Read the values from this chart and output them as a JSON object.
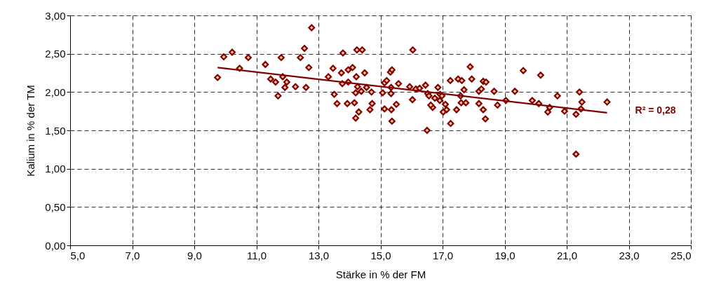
{
  "chart_data": {
    "type": "scatter",
    "xlabel": "Stärke in % der FM",
    "ylabel": "Kalium in % der TM",
    "xlim": [
      5,
      25
    ],
    "ylim": [
      0,
      3
    ],
    "xticks": [
      {
        "value": 5,
        "label": "5,0"
      },
      {
        "value": 7,
        "label": "7,0"
      },
      {
        "value": 9,
        "label": "9,0"
      },
      {
        "value": 11,
        "label": "11,0"
      },
      {
        "value": 13,
        "label": "13,0"
      },
      {
        "value": 15,
        "label": "15,0"
      },
      {
        "value": 17,
        "label": "17,0"
      },
      {
        "value": 19,
        "label": "19,0"
      },
      {
        "value": 21,
        "label": "21,0"
      },
      {
        "value": 23,
        "label": "23,0"
      },
      {
        "value": 25,
        "label": "25,0"
      }
    ],
    "yticks": [
      {
        "value": 0,
        "label": "0,00"
      },
      {
        "value": 0.5,
        "label": "0,50"
      },
      {
        "value": 1,
        "label": "1,00"
      },
      {
        "value": 1.5,
        "label": "1,50"
      },
      {
        "value": 2,
        "label": "2,00"
      },
      {
        "value": 2.5,
        "label": "2,50"
      },
      {
        "value": 3,
        "label": "3,00"
      }
    ],
    "grid": true,
    "marker": "diamond",
    "annotations": [
      "R² = 0,28"
    ],
    "series": [
      {
        "color": "#800000",
        "x": [
          9.75,
          9.95,
          10.22,
          10.46,
          10.74,
          11.29,
          11.46,
          11.62,
          11.8,
          11.85,
          11.98,
          11.92,
          11.7,
          12.26,
          12.42,
          12.55,
          12.69,
          12.6,
          12.78,
          13.32,
          13.47,
          13.51,
          13.6,
          13.79,
          13.74,
          13.77,
          13.93,
          13.96,
          14.1,
          14.16,
          14.2,
          14.22,
          14.24,
          14.41,
          14.3,
          14.2,
          14.26,
          14.38,
          13.96,
          14.49,
          14.55,
          14.71,
          14.73,
          14.66,
          15.07,
          15.13,
          15.2,
          15.32,
          15.37,
          15.34,
          15.34,
          15.13,
          15.35,
          15.51,
          15.37,
          15.58,
          15.94,
          16.04,
          16.03,
          16.14,
          16.26,
          16.45,
          16.52,
          16.56,
          16.5,
          16.75,
          16.85,
          16.92,
          16.98,
          16.68,
          16.62,
          16.91,
          17.09,
          17.13,
          17.02,
          17.26,
          17.45,
          17.25,
          17.5,
          17.62,
          17.69,
          17.58,
          17.6,
          17.75,
          17.89,
          17.94,
          18.17,
          18.25,
          18.31,
          18.4,
          18.17,
          18.31,
          18.38,
          18.66,
          18.77,
          19.04,
          19.33,
          19.6,
          20.16,
          19.89,
          20.1,
          20.45,
          20.39,
          20.7,
          20.93,
          21.3,
          21.41,
          21.49,
          21.46,
          21.3,
          22.3
        ],
        "values": [
          2.19,
          2.46,
          2.52,
          2.31,
          2.45,
          2.36,
          2.17,
          2.13,
          2.45,
          2.2,
          2.13,
          2.06,
          1.95,
          2.07,
          2.45,
          2.57,
          2.32,
          2.06,
          2.84,
          2.2,
          2.31,
          1.97,
          1.85,
          2.51,
          2.25,
          2.11,
          1.85,
          2.29,
          2.32,
          1.86,
          1.99,
          2.2,
          2.55,
          2.55,
          1.74,
          1.66,
          2.07,
          2.01,
          2.13,
          2.25,
          2.06,
          2.0,
          1.85,
          1.77,
          1.99,
          2.12,
          2.15,
          2.26,
          2.29,
          1.98,
          2.06,
          1.78,
          1.77,
          1.84,
          1.62,
          2.11,
          2.07,
          2.55,
          1.9,
          2.04,
          2.05,
          2.09,
          1.98,
          1.95,
          1.5,
          1.92,
          2.06,
          1.97,
          1.95,
          1.8,
          1.83,
          1.89,
          1.84,
          1.77,
          1.74,
          1.59,
          1.77,
          2.15,
          2.17,
          2.15,
          2.03,
          1.95,
          1.86,
          1.86,
          2.33,
          2.17,
          2.01,
          2.04,
          2.14,
          2.13,
          1.85,
          1.77,
          1.65,
          2.01,
          1.83,
          1.89,
          2.01,
          2.28,
          2.22,
          1.89,
          1.85,
          1.8,
          1.74,
          1.95,
          1.75,
          1.71,
          2.0,
          1.87,
          1.78,
          1.19,
          1.87
        ]
      },
      {
        "type": "line",
        "color": "#800000",
        "marker": "none",
        "line_style": "solid",
        "x": [
          9.75,
          22.3
        ],
        "values": [
          2.32,
          1.73
        ]
      }
    ]
  }
}
